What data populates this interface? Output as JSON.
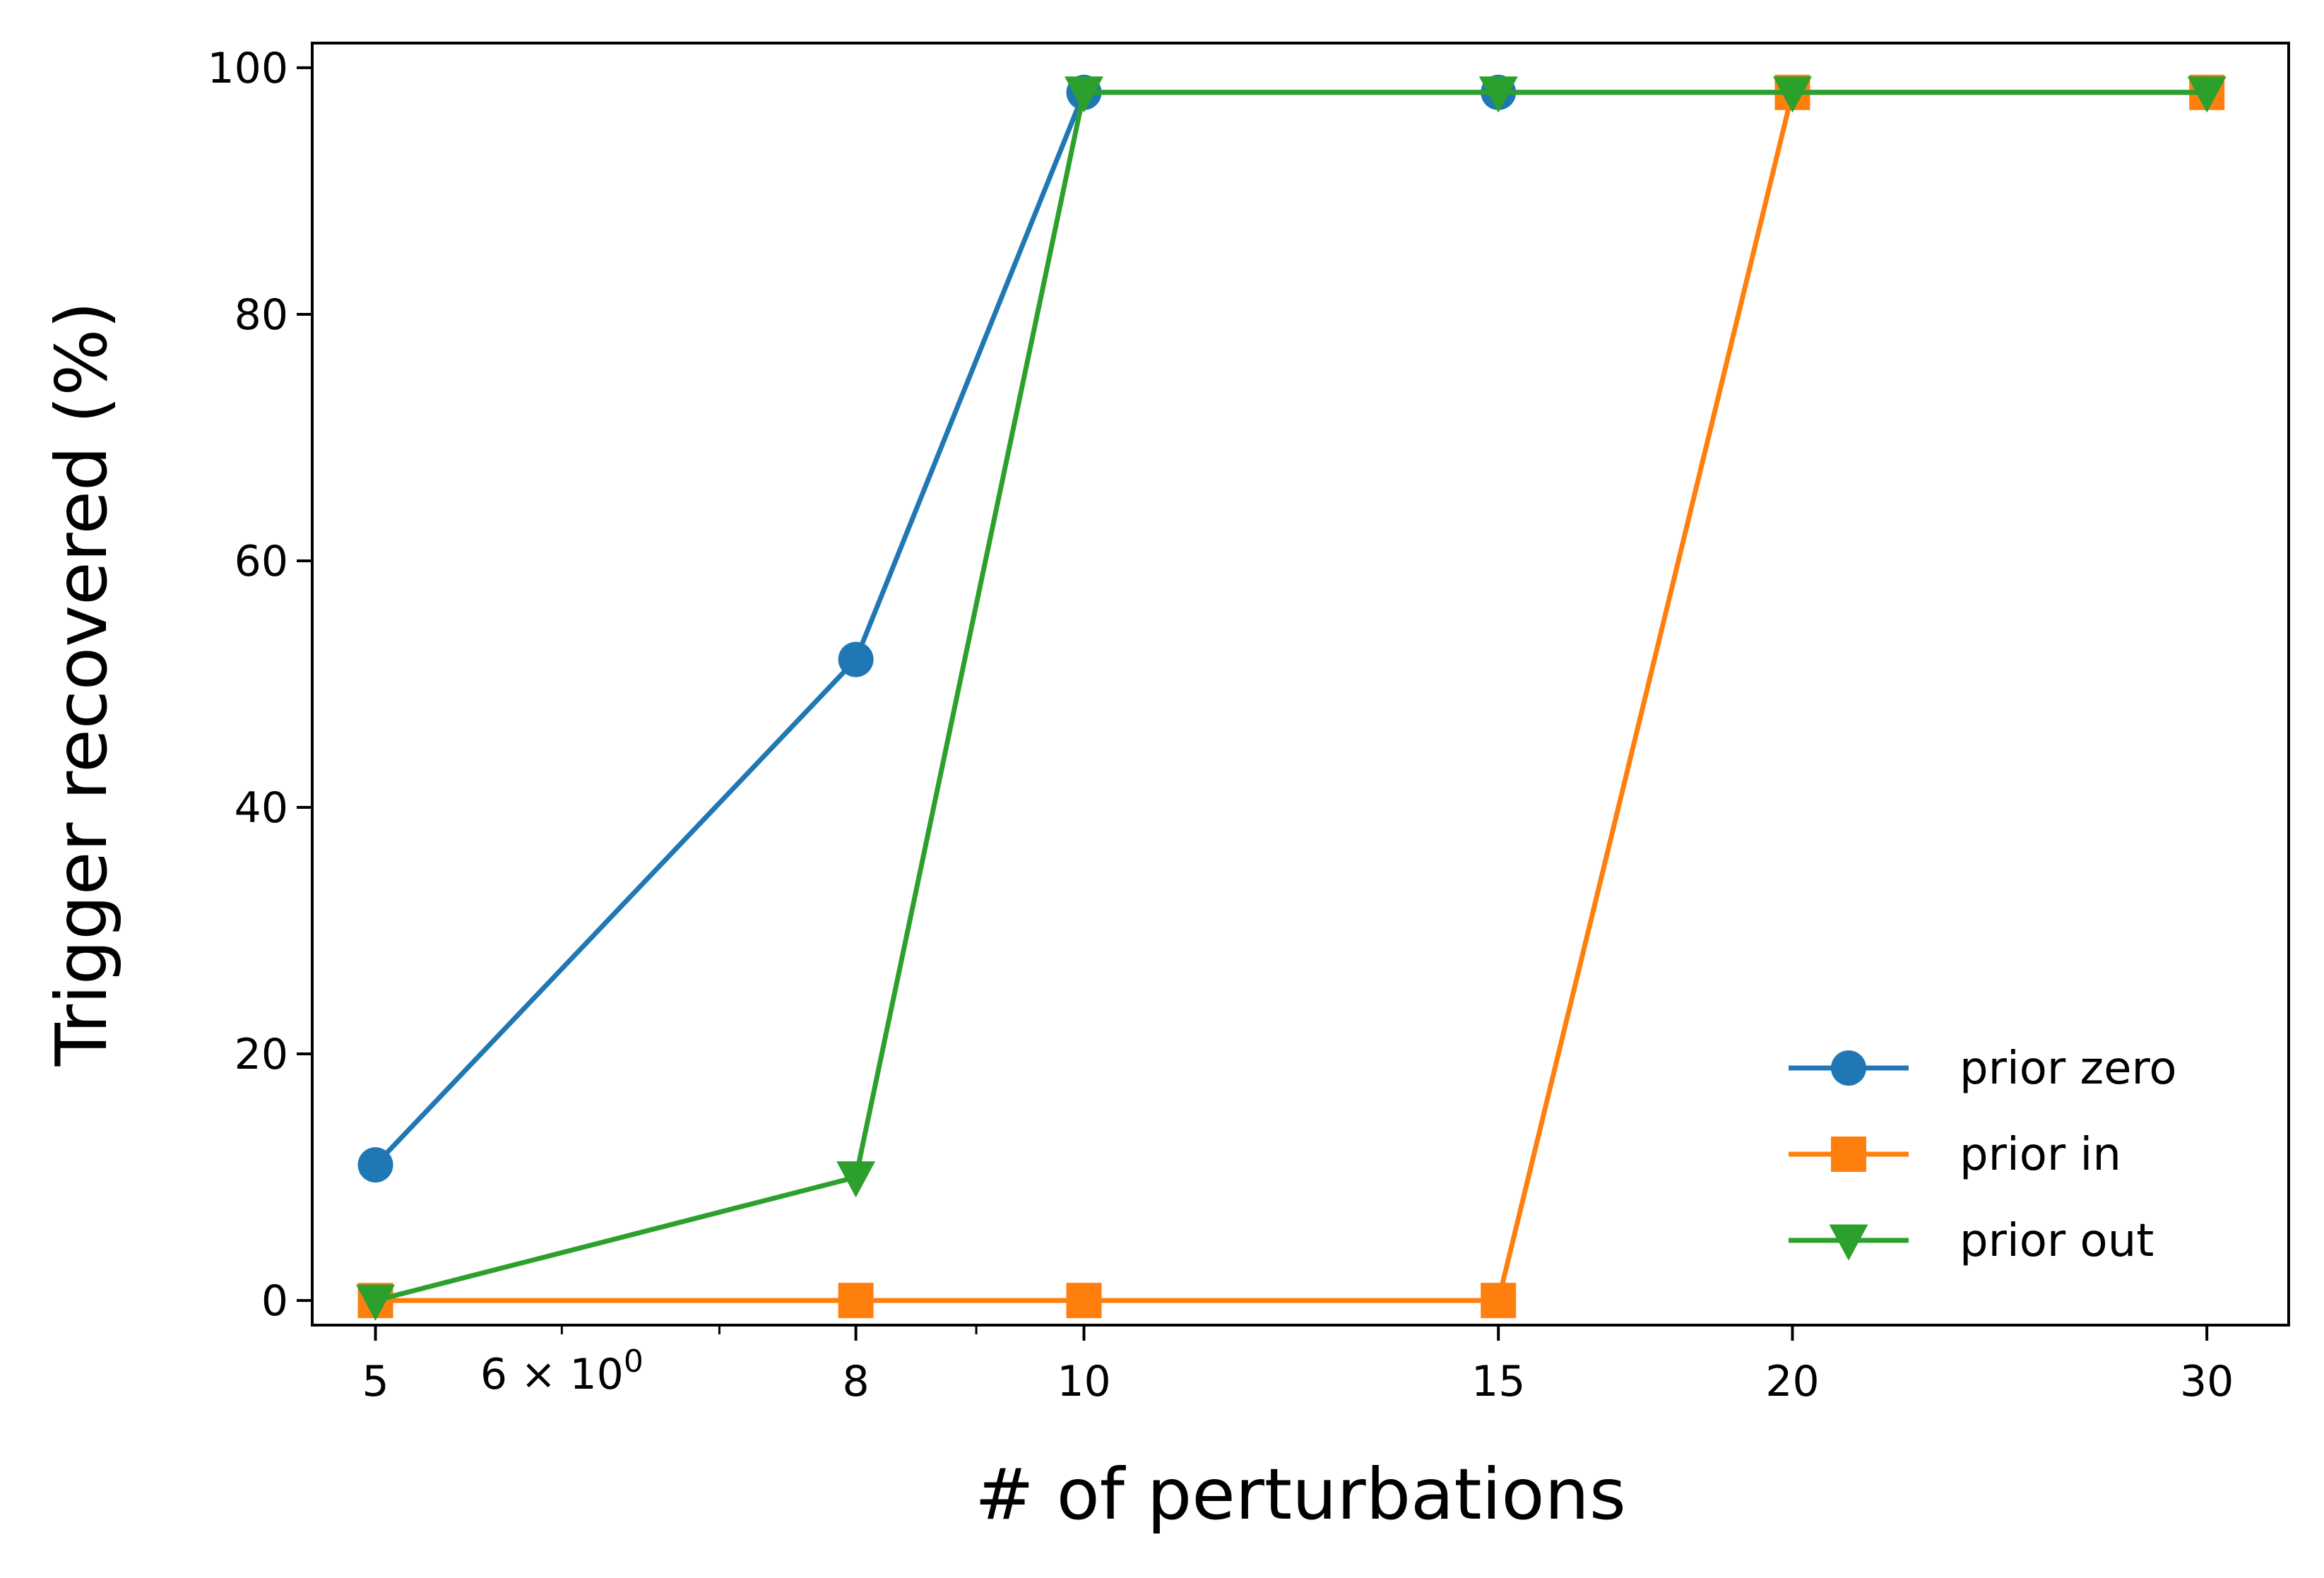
{
  "chart_data": {
    "type": "line",
    "x_scale": "log",
    "xlabel": "# of perturbations",
    "ylabel": "Trigger recovered (%)",
    "x": [
      5,
      8,
      10,
      15,
      20,
      30
    ],
    "xlim": [
      4.7,
      32.5
    ],
    "ylim": [
      -2,
      102
    ],
    "x_ticks": [
      {
        "value": 5,
        "label": "5"
      },
      {
        "value": 8,
        "label": "8"
      },
      {
        "value": 10,
        "label": "10"
      },
      {
        "value": 15,
        "label": "15"
      },
      {
        "value": 20,
        "label": "20"
      },
      {
        "value": 30,
        "label": "30"
      }
    ],
    "x_extra_tick": {
      "value": 6,
      "label_base": "6 × 10",
      "label_exp": "0"
    },
    "x_minor_ticks": [
      7,
      9
    ],
    "y_ticks": [
      0,
      20,
      40,
      60,
      80,
      100
    ],
    "grid": false,
    "legend_position": "lower-right",
    "series": [
      {
        "name": "prior zero",
        "color": "#1f77b4",
        "marker": "circle",
        "values": [
          11,
          52,
          98,
          98,
          98,
          98
        ]
      },
      {
        "name": "prior in",
        "color": "#ff7f0e",
        "marker": "square",
        "values": [
          0,
          0,
          0,
          0,
          98,
          98
        ]
      },
      {
        "name": "prior out",
        "color": "#2ca02c",
        "marker": "triangle-down",
        "values": [
          0,
          10,
          98,
          98,
          98,
          98
        ]
      }
    ]
  }
}
